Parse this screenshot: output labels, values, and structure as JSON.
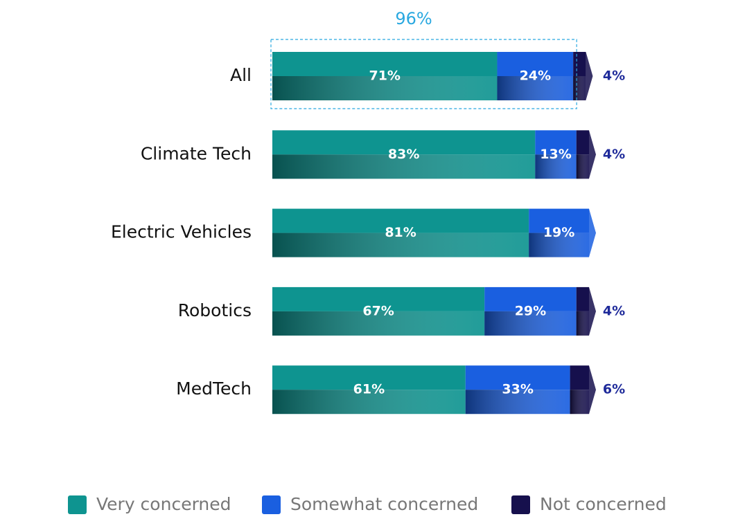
{
  "chart_data": {
    "type": "bar",
    "orientation": "horizontal",
    "stacked": true,
    "annotation": "96%",
    "categories": [
      "All",
      "Climate Tech",
      "Electric Vehicles",
      "Robotics",
      "MedTech"
    ],
    "xlim": [
      0,
      100
    ],
    "series": [
      {
        "name": "Very concerned",
        "color": "#0e9490",
        "values": [
          71,
          83,
          81,
          67,
          61
        ],
        "value_labels": [
          "71%",
          "83%",
          "81%",
          "67%",
          "61%"
        ]
      },
      {
        "name": "Somewhat concerned",
        "color": "#1a5fe0",
        "values": [
          24,
          13,
          19,
          29,
          33
        ],
        "value_labels": [
          "24%",
          "13%",
          "19%",
          "29%",
          "33%"
        ]
      },
      {
        "name": "Not concerned",
        "color": "#16104d",
        "values": [
          4,
          4,
          null,
          4,
          6
        ],
        "value_labels": [
          "4%",
          "4%",
          null,
          "4%",
          "6%"
        ]
      }
    ]
  }
}
